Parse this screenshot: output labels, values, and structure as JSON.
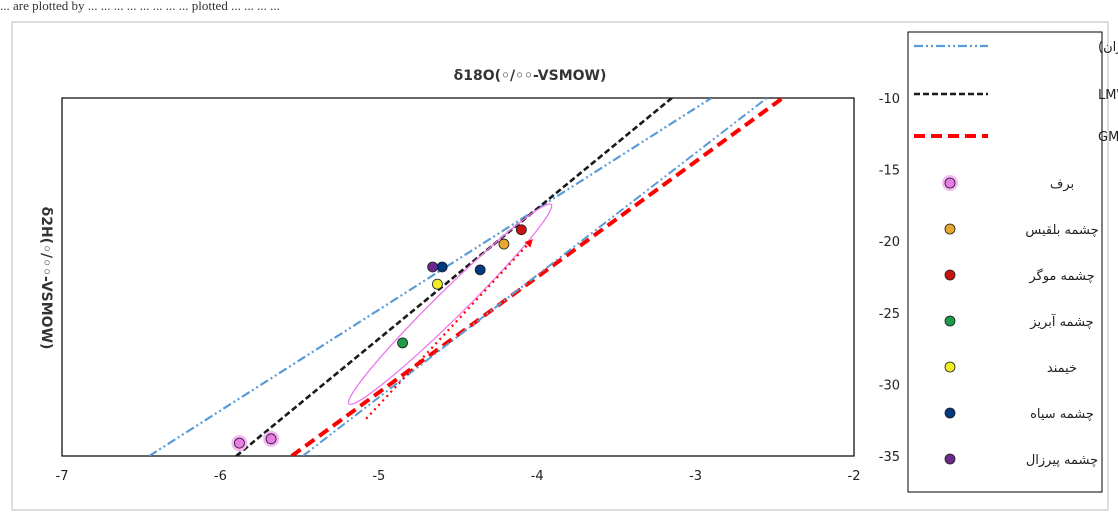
{
  "caption_fragment": "... are plotted by ... ... ... ... ... ... ... ... plotted ... ... ... ...",
  "chart_data": {
    "type": "scatter",
    "title": "δ18O(◦/◦◦-VSMOW)",
    "ylabel": "δ2H(◦/◦◦-VSMOW)",
    "xlim": [
      -7,
      -2
    ],
    "ylim": [
      -35,
      -10
    ],
    "x_ticks": [
      "-7",
      "-6",
      "-5",
      "-4",
      "-3",
      "-2"
    ],
    "y_ticks": [
      "-10",
      "-15",
      "-20",
      "-25",
      "-30",
      "-35"
    ],
    "lines": [
      {
        "name": "LMWL ( فرهادی و همکاران)",
        "style": "dash-dot-dot",
        "color": "#5b9bd5",
        "points": [
          [
            -6.45,
            -35
          ],
          [
            -2.9,
            -10
          ]
        ]
      },
      {
        "name": "LMWL",
        "style": "dash",
        "color": "#1a1a1a",
        "points": [
          [
            -5.9,
            -35
          ],
          [
            -3.15,
            -10
          ]
        ]
      },
      {
        "name": "GMWL",
        "style": "thick-dash",
        "color": "#ff0000",
        "points": [
          [
            -5.55,
            -35
          ],
          [
            -2.45,
            -10
          ]
        ]
      }
    ],
    "series": [
      {
        "name": "برف",
        "color": "#e87de8",
        "halo": "#f4b6f4",
        "points": [
          [
            -5.88,
            -34.1
          ],
          [
            -5.68,
            -33.8
          ]
        ]
      },
      {
        "name": "چشمه بلقیس",
        "color": "#e8a830",
        "points": [
          [
            -4.21,
            -20.2
          ]
        ]
      },
      {
        "name": "چشمه موگر",
        "color": "#cc1111",
        "points": [
          [
            -4.1,
            -19.2
          ]
        ]
      },
      {
        "name": "چشمه آبریز",
        "color": "#1e9a4a",
        "points": [
          [
            -4.85,
            -27.1
          ]
        ]
      },
      {
        "name": "خیمند",
        "color": "#eeee22",
        "points": [
          [
            -4.63,
            -23.0
          ]
        ]
      },
      {
        "name": "چشمه سیاه",
        "color": "#003a80",
        "points": [
          [
            -4.36,
            -22.0
          ],
          [
            -4.6,
            -21.8
          ]
        ]
      },
      {
        "name": "چشمه پیرزال",
        "color": "#6a2a8c",
        "points": [
          [
            -4.66,
            -21.8
          ]
        ]
      }
    ],
    "legend_position": "right"
  }
}
